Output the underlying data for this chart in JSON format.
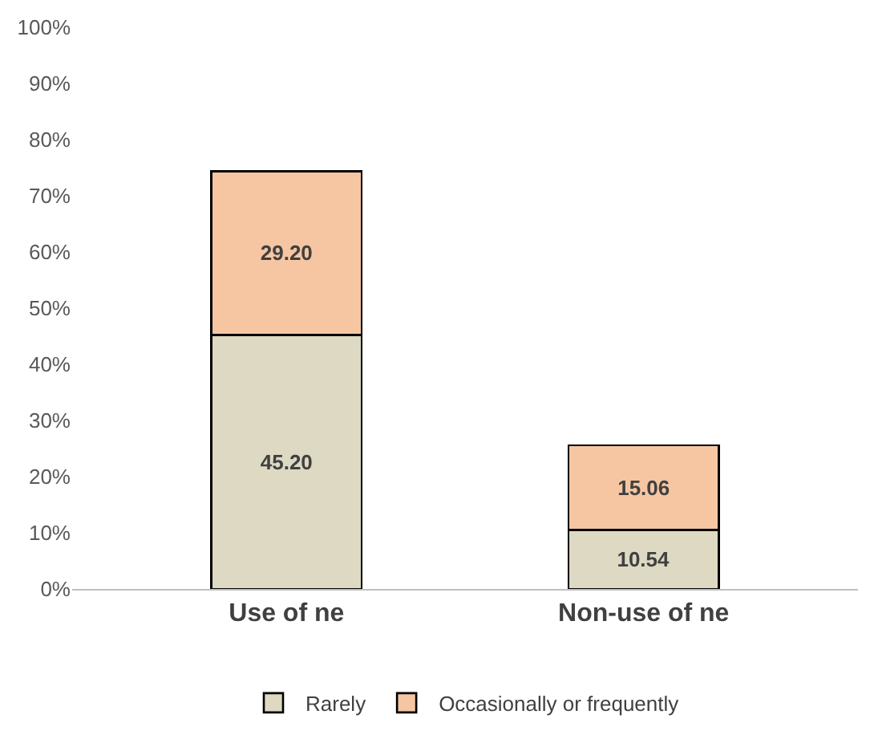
{
  "chart_data": {
    "type": "bar",
    "stacked": true,
    "legend": "bottom",
    "categories": [
      "Use of ne",
      "Non-use of ne"
    ],
    "series": [
      {
        "name": "Rarely",
        "color": "#ddd9c3",
        "values": [
          45.2,
          10.54
        ],
        "value_labels": [
          "45.20",
          "10.54"
        ]
      },
      {
        "name": "Occasionally or frequently",
        "color": "#f6c6a2",
        "values": [
          29.2,
          15.06
        ],
        "value_labels": [
          "29.20",
          "15.06"
        ]
      }
    ],
    "ylim": [
      0,
      100
    ],
    "yticks": [
      {
        "value": 0,
        "label": "0%"
      },
      {
        "value": 10,
        "label": "10%"
      },
      {
        "value": 20,
        "label": "20%"
      },
      {
        "value": 30,
        "label": "30%"
      },
      {
        "value": 40,
        "label": "40%"
      },
      {
        "value": 50,
        "label": "50%"
      },
      {
        "value": 60,
        "label": "60%"
      },
      {
        "value": 70,
        "label": "70%"
      },
      {
        "value": 80,
        "label": "80%"
      },
      {
        "value": 90,
        "label": "90%"
      },
      {
        "value": 100,
        "label": "100%"
      }
    ]
  }
}
